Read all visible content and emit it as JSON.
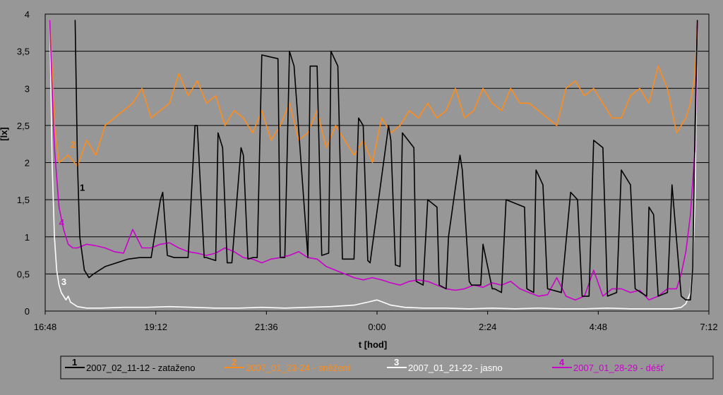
{
  "chart_data": {
    "type": "line",
    "xlabel": "t [hod]",
    "ylabel": "[lx]",
    "ylim": [
      0,
      4
    ],
    "y_ticks": [
      "0",
      "0,5",
      "1",
      "1,5",
      "2",
      "2,5",
      "3",
      "3,5",
      "4"
    ],
    "y_tick_values": [
      0,
      0.5,
      1,
      1.5,
      2,
      2.5,
      3,
      3.5,
      4
    ],
    "x_ticks": [
      "16:48",
      "19:12",
      "21:36",
      "0:00",
      "2:24",
      "4:48",
      "7:12"
    ],
    "x_range_hours": [
      16.8,
      31.2
    ],
    "grid": "horizontal",
    "legend_position": "bottom",
    "series": [
      {
        "label_num": "1",
        "name": "2007_02_11-12 - zataženo",
        "color": "#000000",
        "x": [
          17.45,
          17.5,
          17.55,
          17.65,
          17.75,
          17.85,
          18.1,
          18.35,
          18.6,
          18.85,
          19.1,
          19.3,
          19.35,
          19.45,
          19.6,
          19.9,
          20.05,
          20.1,
          20.25,
          20.3,
          20.5,
          20.55,
          20.65,
          20.75,
          20.85,
          21.05,
          21.1,
          21.2,
          21.3,
          21.4,
          21.5,
          21.85,
          21.9,
          22.0,
          22.1,
          22.2,
          22.5,
          22.55,
          22.7,
          22.8,
          22.95,
          23.0,
          23.15,
          23.25,
          23.5,
          23.6,
          23.7,
          23.8,
          23.85,
          24.25,
          24.3,
          24.4,
          24.5,
          24.55,
          24.8,
          24.85,
          25.0,
          25.1,
          25.3,
          25.35,
          25.5,
          25.55,
          25.8,
          25.85,
          26.0,
          26.05,
          26.25,
          26.3,
          26.5,
          26.55,
          26.7,
          26.8,
          27.2,
          27.25,
          27.4,
          27.45,
          27.6,
          27.7,
          28.0,
          28.2,
          28.35,
          28.45,
          28.6,
          28.7,
          28.9,
          29.0,
          29.2,
          29.3,
          29.5,
          29.6,
          29.85,
          29.9,
          30.0,
          30.1,
          30.3,
          30.4,
          30.6,
          30.7,
          30.8,
          30.85,
          30.9,
          30.95
        ],
        "values": [
          3.92,
          2.0,
          1.0,
          0.55,
          0.45,
          0.5,
          0.6,
          0.65,
          0.7,
          0.72,
          0.72,
          1.5,
          1.6,
          0.75,
          0.72,
          0.72,
          2.5,
          2.5,
          0.72,
          0.72,
          0.68,
          2.4,
          2.2,
          0.65,
          0.65,
          2.2,
          2.1,
          0.7,
          0.72,
          0.72,
          3.45,
          3.4,
          0.72,
          0.72,
          3.5,
          3.3,
          0.72,
          3.3,
          3.3,
          0.75,
          0.78,
          3.5,
          3.3,
          0.7,
          0.7,
          2.6,
          2.5,
          0.68,
          0.65,
          2.5,
          2.3,
          0.62,
          0.6,
          2.4,
          2.2,
          0.4,
          0.35,
          1.5,
          1.4,
          0.35,
          0.3,
          1.0,
          2.1,
          1.9,
          0.4,
          0.35,
          0.35,
          0.9,
          0.3,
          0.3,
          0.25,
          1.5,
          1.4,
          0.3,
          0.25,
          1.9,
          1.7,
          0.3,
          0.25,
          1.6,
          1.5,
          0.2,
          0.2,
          2.3,
          2.2,
          0.2,
          0.25,
          1.9,
          1.7,
          0.3,
          0.2,
          1.4,
          1.3,
          0.2,
          0.25,
          1.7,
          0.2,
          0.15,
          0.15,
          0.6,
          2.5,
          3.92
        ]
      },
      {
        "label_num": "2",
        "name": "2007_01_23-24 - sněžení",
        "color": "#ff8c1a",
        "x": [
          16.9,
          16.95,
          17.0,
          17.1,
          17.3,
          17.5,
          17.7,
          17.9,
          18.1,
          18.3,
          18.5,
          18.7,
          18.9,
          19.1,
          19.3,
          19.5,
          19.7,
          19.9,
          20.1,
          20.3,
          20.5,
          20.7,
          20.9,
          21.1,
          21.3,
          21.5,
          21.7,
          21.9,
          22.1,
          22.3,
          22.5,
          22.7,
          22.9,
          23.1,
          23.3,
          23.5,
          23.7,
          23.9,
          24.1,
          24.3,
          24.5,
          24.7,
          24.9,
          25.1,
          25.3,
          25.5,
          25.7,
          25.9,
          26.1,
          26.3,
          26.5,
          26.7,
          26.9,
          27.1,
          27.3,
          27.5,
          27.7,
          27.9,
          28.1,
          28.3,
          28.5,
          28.7,
          28.9,
          29.1,
          29.3,
          29.5,
          29.7,
          29.9,
          30.1,
          30.3,
          30.5,
          30.7,
          30.8,
          30.9,
          30.95
        ],
        "values": [
          3.92,
          3.3,
          2.5,
          2.0,
          2.1,
          1.95,
          2.3,
          2.1,
          2.5,
          2.6,
          2.7,
          2.8,
          3.0,
          2.6,
          2.7,
          2.8,
          3.2,
          2.9,
          3.1,
          2.8,
          2.9,
          2.5,
          2.7,
          2.6,
          2.4,
          2.7,
          2.3,
          2.5,
          2.8,
          2.3,
          2.4,
          2.7,
          2.2,
          2.5,
          2.3,
          2.1,
          2.3,
          2.0,
          2.6,
          2.4,
          2.5,
          2.7,
          2.6,
          2.8,
          2.6,
          2.7,
          3.0,
          2.6,
          2.7,
          3.0,
          2.8,
          2.7,
          3.0,
          2.8,
          2.8,
          2.7,
          2.6,
          2.5,
          3.0,
          3.1,
          2.9,
          3.0,
          2.8,
          2.6,
          2.6,
          2.9,
          3.0,
          2.8,
          3.3,
          3.0,
          2.4,
          2.6,
          2.8,
          3.2,
          3.92
        ]
      },
      {
        "label_num": "3",
        "name": "2007_01_21-22 - jasno",
        "color": "#ffffff",
        "x": [
          16.9,
          16.95,
          17.0,
          17.05,
          17.1,
          17.15,
          17.2,
          17.25,
          17.3,
          17.35,
          17.4,
          17.5,
          17.7,
          18.0,
          18.5,
          19.0,
          19.5,
          20.0,
          20.5,
          21.0,
          21.5,
          22.0,
          22.5,
          23.0,
          23.5,
          23.8,
          24.0,
          24.3,
          24.6,
          25.0,
          25.5,
          26.0,
          26.5,
          27.0,
          27.5,
          28.0,
          28.5,
          29.0,
          29.5,
          30.0,
          30.4,
          30.6,
          30.7,
          30.8,
          30.85,
          30.9,
          30.95
        ],
        "values": [
          3.92,
          2.0,
          1.0,
          0.55,
          0.35,
          0.25,
          0.2,
          0.15,
          0.2,
          0.12,
          0.1,
          0.06,
          0.04,
          0.04,
          0.05,
          0.05,
          0.06,
          0.05,
          0.04,
          0.04,
          0.05,
          0.04,
          0.05,
          0.06,
          0.08,
          0.12,
          0.15,
          0.08,
          0.05,
          0.04,
          0.04,
          0.03,
          0.04,
          0.03,
          0.04,
          0.03,
          0.03,
          0.04,
          0.03,
          0.03,
          0.03,
          0.05,
          0.1,
          0.25,
          0.6,
          1.5,
          3.92
        ]
      },
      {
        "label_num": "4",
        "name": "2007_01_28-29 - déšť",
        "color": "#cc00cc",
        "x": [
          16.9,
          16.95,
          17.0,
          17.1,
          17.2,
          17.3,
          17.4,
          17.5,
          17.7,
          17.9,
          18.1,
          18.3,
          18.5,
          18.7,
          18.9,
          19.1,
          19.3,
          19.5,
          19.7,
          19.9,
          20.1,
          20.3,
          20.5,
          20.7,
          20.9,
          21.1,
          21.3,
          21.5,
          21.7,
          21.9,
          22.1,
          22.3,
          22.5,
          22.7,
          22.9,
          23.1,
          23.3,
          23.5,
          23.7,
          23.9,
          24.1,
          24.3,
          24.5,
          24.7,
          24.9,
          25.1,
          25.3,
          25.5,
          25.7,
          25.9,
          26.1,
          26.3,
          26.5,
          26.7,
          26.9,
          27.1,
          27.3,
          27.5,
          27.7,
          27.9,
          28.1,
          28.3,
          28.5,
          28.7,
          28.9,
          29.1,
          29.3,
          29.5,
          29.7,
          29.9,
          30.1,
          30.3,
          30.5,
          30.6,
          30.7,
          30.8,
          30.9,
          30.95
        ],
        "values": [
          3.92,
          3.0,
          2.2,
          1.4,
          1.1,
          0.9,
          0.85,
          0.85,
          0.9,
          0.88,
          0.85,
          0.8,
          0.78,
          1.1,
          0.85,
          0.85,
          0.9,
          0.92,
          0.85,
          0.8,
          0.78,
          0.75,
          0.78,
          0.85,
          0.8,
          0.72,
          0.7,
          0.65,
          0.7,
          0.72,
          0.75,
          0.8,
          0.72,
          0.7,
          0.6,
          0.55,
          0.5,
          0.45,
          0.42,
          0.45,
          0.42,
          0.38,
          0.35,
          0.4,
          0.42,
          0.4,
          0.35,
          0.3,
          0.28,
          0.3,
          0.35,
          0.32,
          0.38,
          0.35,
          0.4,
          0.3,
          0.25,
          0.2,
          0.22,
          0.45,
          0.2,
          0.15,
          0.2,
          0.55,
          0.2,
          0.3,
          0.3,
          0.25,
          0.28,
          0.15,
          0.2,
          0.3,
          0.3,
          0.5,
          0.8,
          1.3,
          2.2,
          3.92
        ]
      }
    ]
  }
}
